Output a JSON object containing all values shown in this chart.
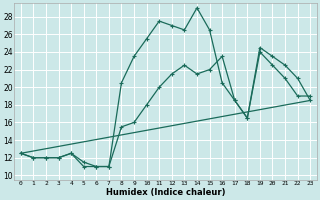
{
  "xlabel": "Humidex (Indice chaleur)",
  "bg_color": "#cce8e8",
  "grid_color": "#b0d4d4",
  "line_color": "#1a6b5a",
  "xlim": [
    -0.5,
    23.5
  ],
  "ylim": [
    9.5,
    29.5
  ],
  "xticks": [
    0,
    1,
    2,
    3,
    4,
    5,
    6,
    7,
    8,
    9,
    10,
    11,
    12,
    13,
    14,
    15,
    16,
    17,
    18,
    19,
    20,
    21,
    22,
    23
  ],
  "yticks": [
    10,
    12,
    14,
    16,
    18,
    20,
    22,
    24,
    26,
    28
  ],
  "line1": [
    [
      0,
      12.5
    ],
    [
      1,
      12.0
    ],
    [
      2,
      12.0
    ],
    [
      3,
      12.0
    ],
    [
      4,
      12.5
    ],
    [
      5,
      11.0
    ],
    [
      6,
      11.0
    ],
    [
      7,
      11.0
    ],
    [
      8,
      20.5
    ],
    [
      9,
      23.5
    ],
    [
      10,
      25.5
    ],
    [
      11,
      27.5
    ],
    [
      12,
      27.0
    ],
    [
      13,
      26.5
    ],
    [
      14,
      29.0
    ],
    [
      15,
      26.5
    ],
    [
      16,
      20.5
    ],
    [
      17,
      18.5
    ],
    [
      18,
      16.5
    ],
    [
      19,
      24.0
    ],
    [
      20,
      22.5
    ],
    [
      21,
      21.0
    ],
    [
      22,
      19.0
    ],
    [
      23,
      19.0
    ]
  ],
  "line2": [
    [
      0,
      12.5
    ],
    [
      1,
      12.0
    ],
    [
      2,
      12.0
    ],
    [
      3,
      12.0
    ],
    [
      4,
      12.5
    ],
    [
      5,
      11.5
    ],
    [
      6,
      11.0
    ],
    [
      7,
      11.0
    ],
    [
      8,
      15.5
    ],
    [
      9,
      16.0
    ],
    [
      10,
      18.0
    ],
    [
      11,
      20.0
    ],
    [
      12,
      21.5
    ],
    [
      13,
      22.5
    ],
    [
      14,
      21.5
    ],
    [
      15,
      22.0
    ],
    [
      16,
      23.5
    ],
    [
      17,
      18.5
    ],
    [
      18,
      16.5
    ],
    [
      19,
      24.5
    ],
    [
      20,
      23.5
    ],
    [
      21,
      22.5
    ],
    [
      22,
      21.0
    ],
    [
      23,
      18.5
    ]
  ],
  "line3": [
    [
      0,
      12.5
    ],
    [
      23,
      18.5
    ]
  ]
}
